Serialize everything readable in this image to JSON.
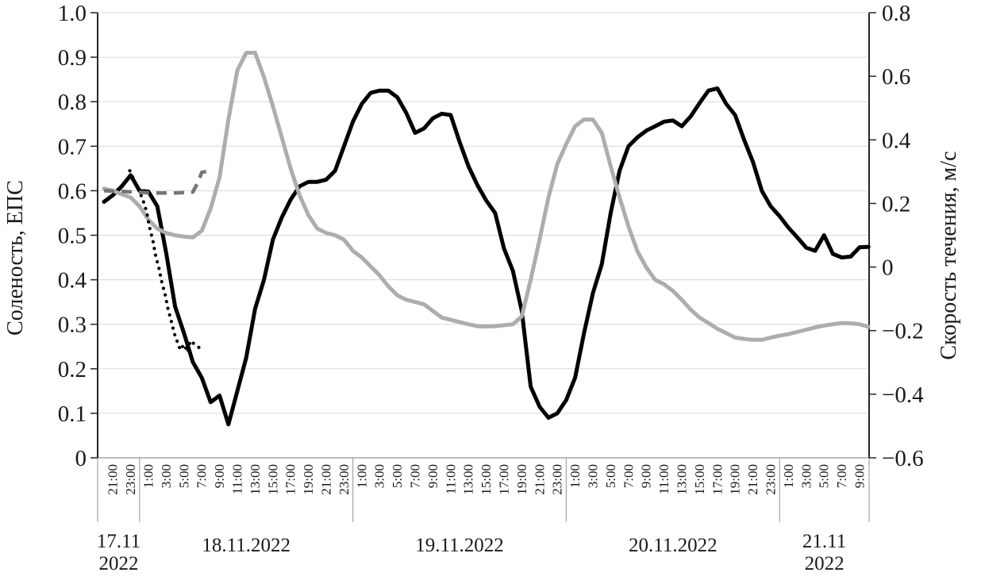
{
  "chart_data": {
    "type": "line",
    "title": "",
    "legend": "none",
    "grid": "horizontal",
    "left_axis": {
      "label": "Соленость, ЕПС",
      "min": 0,
      "max": 1.0,
      "tick_step": 0.1,
      "ticks": [
        "1.0",
        "0.9",
        "0.8",
        "0.7",
        "0.6",
        "0.5",
        "0.4",
        "0.3",
        "0.2",
        "0.1",
        "0"
      ]
    },
    "right_axis": {
      "label": "Скорость течения, м/с",
      "min": -0.6,
      "max": 0.8,
      "tick_step": 0.2,
      "ticks": [
        "0.8",
        "0.6",
        "0.4",
        "0.2",
        "0",
        "−0.2",
        "−0.4",
        "−0.6"
      ]
    },
    "x_axis": {
      "start": "17.11.2022 20:00",
      "end": "21.11.2022 10:00",
      "tick_interval_hours": 2,
      "time_ticks": [
        "21:00",
        "23:00",
        "1:00",
        "3:00",
        "5:00",
        "7:00",
        "9:00",
        "11:00",
        "13:00",
        "15:00",
        "17:00",
        "19:00",
        "21:00",
        "23:00",
        "1:00",
        "3:00",
        "5:00",
        "7:00",
        "9:00",
        "11:00",
        "13:00",
        "15:00",
        "17:00",
        "19:00",
        "21:00",
        "23:00",
        "1:00",
        "3:00",
        "5:00",
        "7:00",
        "9:00",
        "11:00",
        "13:00",
        "15:00",
        "17:00",
        "19:00",
        "21:00",
        "23:00",
        "1:00",
        "3:00",
        "5:00",
        "7:00",
        "9:00"
      ],
      "separators_t": [
        4,
        28,
        52,
        76
      ],
      "dates": [
        {
          "lines": [
            "17.11",
            "2022"
          ],
          "start_t": -0.7,
          "end_t": 4
        },
        {
          "lines": [
            "18.11.2022"
          ],
          "start_t": 4,
          "end_t": 28
        },
        {
          "lines": [
            "19.11.2022"
          ],
          "start_t": 28,
          "end_t": 52
        },
        {
          "lines": [
            "20.11.2022"
          ],
          "start_t": 52,
          "end_t": 76
        },
        {
          "lines": [
            "21.11",
            "2022"
          ],
          "start_t": 76,
          "end_t": 86.1
        }
      ]
    },
    "colors": {
      "black_line": "#000000",
      "gray_line": "#adadad",
      "dashed_line": "#757575",
      "dotted_line": "#000000",
      "gridline": "#d9d9d9",
      "axis_line": "#262626",
      "x_axis_line": "#a6a6a6"
    },
    "series": [
      {
        "name": "salinity-black-solid",
        "axis": "left",
        "style": "solid",
        "color_key": "black_line",
        "start_hour": 0,
        "step_hours": 1,
        "values": [
          0.575,
          0.59,
          0.61,
          0.635,
          0.6,
          0.598,
          0.565,
          0.46,
          0.34,
          0.28,
          0.215,
          0.18,
          0.125,
          0.14,
          0.075,
          0.15,
          0.225,
          0.335,
          0.4,
          0.49,
          0.54,
          0.58,
          0.61,
          0.62,
          0.62,
          0.625,
          0.645,
          0.7,
          0.755,
          0.795,
          0.82,
          0.825,
          0.825,
          0.81,
          0.775,
          0.73,
          0.74,
          0.763,
          0.773,
          0.77,
          0.71,
          0.655,
          0.613,
          0.578,
          0.55,
          0.47,
          0.42,
          0.33,
          0.16,
          0.115,
          0.09,
          0.1,
          0.13,
          0.18,
          0.28,
          0.37,
          0.435,
          0.55,
          0.645,
          0.7,
          0.72,
          0.735,
          0.745,
          0.755,
          0.758,
          0.745,
          0.767,
          0.797,
          0.825,
          0.83,
          0.795,
          0.77,
          0.715,
          0.665,
          0.6,
          0.565,
          0.543,
          0.517,
          0.495,
          0.472,
          0.465,
          0.5,
          0.458,
          0.45,
          0.452,
          0.473,
          0.474
        ]
      },
      {
        "name": "current-speed-gray-solid",
        "axis": "right",
        "style": "solid",
        "color_key": "gray_line",
        "start_hour": 0,
        "step_hours": 1,
        "values": [
          0.247,
          0.24,
          0.229,
          0.219,
          0.191,
          0.149,
          0.121,
          0.107,
          0.1,
          0.096,
          0.093,
          0.114,
          0.184,
          0.282,
          0.464,
          0.618,
          0.674,
          0.674,
          0.597,
          0.506,
          0.408,
          0.31,
          0.226,
          0.163,
          0.121,
          0.107,
          0.1,
          0.086,
          0.051,
          0.03,
          0.002,
          -0.026,
          -0.061,
          -0.089,
          -0.103,
          -0.11,
          -0.117,
          -0.138,
          -0.159,
          -0.166,
          -0.173,
          -0.18,
          -0.186,
          -0.187,
          -0.186,
          -0.183,
          -0.18,
          -0.155,
          -0.04,
          0.086,
          0.219,
          0.324,
          0.387,
          0.443,
          0.464,
          0.464,
          0.422,
          0.317,
          0.219,
          0.128,
          0.05,
          -0.001,
          -0.04,
          -0.054,
          -0.075,
          -0.103,
          -0.134,
          -0.159,
          -0.176,
          -0.194,
          -0.208,
          -0.222,
          -0.226,
          -0.229,
          -0.229,
          -0.222,
          -0.216,
          -0.211,
          -0.204,
          -0.197,
          -0.19,
          -0.184,
          -0.18,
          -0.176,
          -0.177,
          -0.18,
          -0.188
        ]
      },
      {
        "name": "salinity-black-dotted",
        "axis": "left",
        "style": "dotted",
        "color_key": "dotted_line",
        "points": [
          [
            2.9,
            0.645
          ],
          [
            3.2,
            0.632
          ],
          [
            3.6,
            0.615
          ],
          [
            4.0,
            0.598
          ],
          [
            4.4,
            0.578
          ],
          [
            4.8,
            0.553
          ],
          [
            5.1,
            0.52
          ],
          [
            5.5,
            0.488
          ],
          [
            5.8,
            0.455
          ],
          [
            6.2,
            0.425
          ],
          [
            6.5,
            0.395
          ],
          [
            6.9,
            0.365
          ],
          [
            7.2,
            0.335
          ],
          [
            7.6,
            0.305
          ],
          [
            7.9,
            0.28
          ],
          [
            8.3,
            0.258
          ],
          [
            8.6,
            0.242
          ],
          [
            9.0,
            0.255
          ],
          [
            9.4,
            0.237
          ],
          [
            9.7,
            0.263
          ],
          [
            11.2,
            0.24
          ]
        ]
      },
      {
        "name": "current-speed-gray-dashed",
        "axis": "right",
        "style": "dashed",
        "color_key": "dashed_line",
        "points": [
          [
            0,
            0.24
          ],
          [
            2,
            0.238
          ],
          [
            4,
            0.235
          ],
          [
            6,
            0.233
          ],
          [
            8,
            0.233
          ],
          [
            10,
            0.236
          ],
          [
            10.6,
            0.268
          ],
          [
            11,
            0.298
          ],
          [
            12,
            0.303
          ]
        ]
      }
    ]
  }
}
